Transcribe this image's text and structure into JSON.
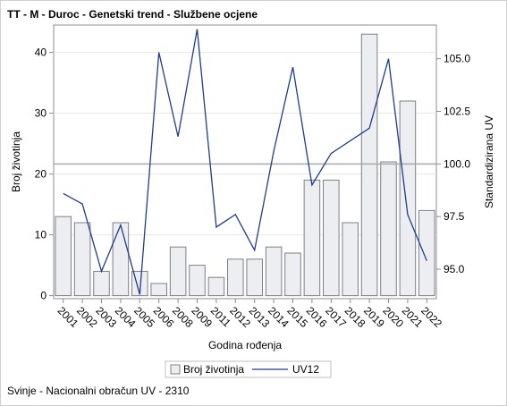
{
  "chart_data": {
    "type": "bar+line",
    "title": "TT - M - Duroc - Genetski trend - Službene ocjene",
    "footnote": "Svinje - Nacionalni obračun UV - 2310",
    "xlabel": "Godina rođenja",
    "ylabel": "Broj životinja",
    "y2label": "Standardizirana UV",
    "categories": [
      "2001",
      "2002",
      "2003",
      "2004",
      "2005",
      "2006",
      "2008",
      "2009",
      "2011",
      "2012",
      "2013",
      "2014",
      "2015",
      "2016",
      "2017",
      "2018",
      "2019",
      "2020",
      "2021",
      "2022"
    ],
    "series": [
      {
        "name": "Broj životinja",
        "type": "bar",
        "axis": "left",
        "values": [
          13,
          12,
          4,
          12,
          4,
          2,
          8,
          5,
          3,
          6,
          6,
          8,
          7,
          19,
          19,
          12,
          43,
          22,
          32,
          14
        ]
      },
      {
        "name": "UV12",
        "type": "line",
        "axis": "right",
        "values": [
          98.6,
          98.1,
          94.9,
          97.1,
          93.8,
          105.3,
          101.3,
          106.4,
          97.0,
          97.6,
          95.9,
          100.6,
          104.6,
          99.0,
          100.5,
          101.1,
          101.7,
          105.0,
          97.6,
          95.4
        ]
      }
    ],
    "y_ticks": [
      0,
      10,
      20,
      30,
      40
    ],
    "y2_ticks": [
      "95.0",
      "97.5",
      "100.0",
      "102.5",
      "105.0"
    ],
    "ylim": [
      -0.5,
      44.5
    ],
    "y2lim": [
      93.6,
      106.6
    ],
    "reference_line": {
      "axis": "right",
      "value": 100.0
    },
    "legend_position": "bottom",
    "colors": {
      "bar_fill": "#eceef2",
      "bar_stroke": "#7d8089",
      "line": "#1f3d8f",
      "ref_line": "#a9a9a9",
      "grid": "#e6e6e6",
      "axis": "#8c8c8c"
    }
  }
}
